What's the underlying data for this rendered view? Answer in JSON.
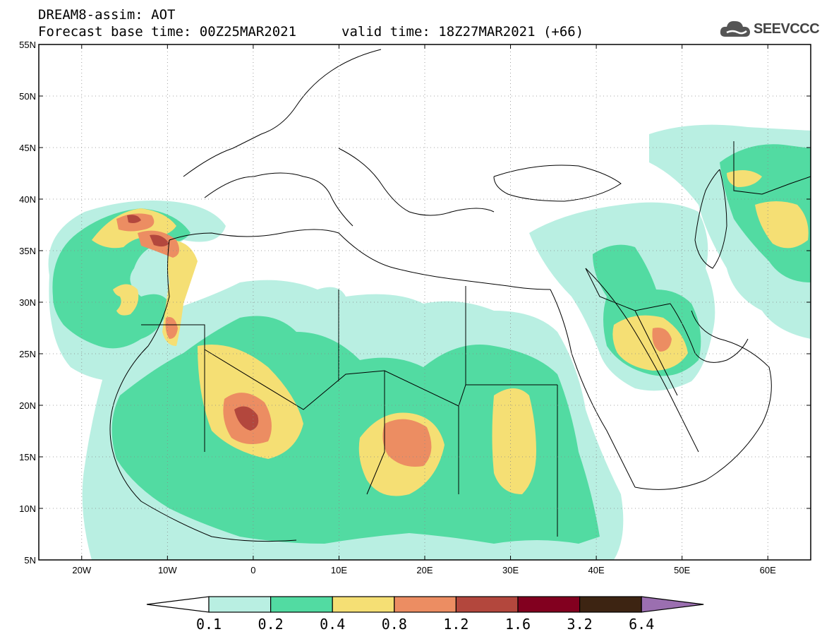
{
  "header": {
    "title": "DREAM8-assim: AOT",
    "base_time": "Forecast base time: 00Z25MAR2021",
    "valid_time": "valid time: 18Z27MAR2021 (+66)"
  },
  "logo": {
    "text": "SEEVCCC",
    "icon": "cloud-icon"
  },
  "map": {
    "lon_range": [
      -25,
      65
    ],
    "lat_range": [
      5,
      55
    ],
    "lat_ticks": [
      "5N",
      "10N",
      "15N",
      "20N",
      "25N",
      "30N",
      "35N",
      "40N",
      "45N",
      "50N",
      "55N"
    ],
    "lon_ticks": [
      "20W",
      "10W",
      "0",
      "10E",
      "20E",
      "30E",
      "40E",
      "50E",
      "60E"
    ]
  },
  "colorbar": {
    "labels": [
      "0.1",
      "0.2",
      "0.4",
      "0.8",
      "1.2",
      "1.6",
      "3.2",
      "6.4"
    ],
    "colors": [
      "#ffffff",
      "#b9efe2",
      "#52dba2",
      "#f5df74",
      "#ec8d62",
      "#b3473d",
      "#82001f",
      "#3d2412",
      "#9b6fb0"
    ]
  },
  "colors": {
    "level_1": "#b9efe2",
    "level_2": "#52dba2",
    "level_3": "#f5df74",
    "level_4": "#ec8d62",
    "level_5": "#b3473d"
  }
}
